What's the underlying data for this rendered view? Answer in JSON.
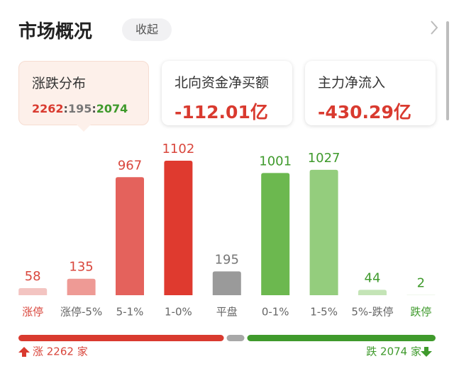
{
  "header": {
    "title": "市场概况",
    "button": "收起"
  },
  "cards": [
    {
      "title": "涨跌分布",
      "up": 2262,
      "separator": ":",
      "flat": 195,
      "down": 2074
    },
    {
      "title": "北向资金净买额",
      "value": "-112.01亿"
    },
    {
      "title": "主力净流入",
      "value": "-430.29亿"
    }
  ],
  "chart_data": {
    "type": "bar",
    "categories": [
      "涨停",
      "涨停-5%",
      "5-1%",
      "1-0%",
      "平盘",
      "0-1%",
      "1-5%",
      "5%-跌停",
      "跌停"
    ],
    "values": [
      58,
      135,
      967,
      1102,
      195,
      1001,
      1027,
      44,
      2
    ],
    "colors": [
      "#f3c4c1",
      "#ee9a95",
      "#e4625c",
      "#df3a2f",
      "#9a9a9a",
      "#6cb84f",
      "#94cd7d",
      "#c4e4b6",
      "#d8eecf"
    ],
    "value_colors": [
      "#d9463c",
      "#d9463c",
      "#d9463c",
      "#d9463c",
      "#777777",
      "#3f9a2c",
      "#3f9a2c",
      "#3f9a2c",
      "#3f9a2c"
    ],
    "category_colors": [
      "#d9463c",
      "#666666",
      "#666666",
      "#666666",
      "#666666",
      "#666666",
      "#666666",
      "#666666",
      "#3f9a2c"
    ]
  },
  "footer": {
    "up_label": "涨 2262 家",
    "down_label": "跌 2074 家"
  }
}
